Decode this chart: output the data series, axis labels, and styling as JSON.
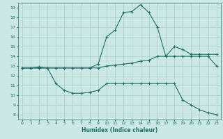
{
  "xlabel": "Humidex (Indice chaleur)",
  "bg_color": "#cce8e4",
  "grid_color": "#aad4cc",
  "line_color": "#1a6e64",
  "xlim": [
    -0.5,
    23.5
  ],
  "ylim": [
    7.5,
    19.5
  ],
  "yticks": [
    8,
    9,
    10,
    11,
    12,
    13,
    14,
    15,
    16,
    17,
    18,
    19
  ],
  "xticks": [
    0,
    1,
    2,
    3,
    4,
    5,
    6,
    7,
    8,
    9,
    10,
    11,
    12,
    13,
    14,
    15,
    16,
    17,
    18,
    19,
    20,
    21,
    22,
    23
  ],
  "line1_x": [
    0,
    1,
    2,
    3,
    4,
    5,
    6,
    7,
    8,
    9,
    10,
    11,
    12,
    13,
    14,
    15,
    16,
    17,
    18,
    19,
    20,
    21,
    22,
    23
  ],
  "line1_y": [
    12.8,
    12.8,
    12.9,
    12.8,
    11.2,
    10.5,
    10.2,
    10.2,
    10.3,
    10.5,
    11.2,
    11.2,
    11.2,
    11.2,
    11.2,
    11.2,
    11.2,
    11.2,
    11.2,
    9.5,
    9.0,
    8.5,
    8.2,
    8.0
  ],
  "line2_x": [
    0,
    1,
    2,
    3,
    4,
    5,
    6,
    7,
    8,
    9,
    10,
    11,
    12,
    13,
    14,
    15,
    16,
    17,
    18,
    19,
    20,
    21,
    22,
    23
  ],
  "line2_y": [
    12.8,
    12.8,
    12.8,
    12.8,
    12.8,
    12.8,
    12.8,
    12.8,
    12.8,
    12.8,
    13.0,
    13.1,
    13.2,
    13.3,
    13.5,
    13.6,
    14.0,
    14.0,
    14.0,
    14.0,
    14.0,
    14.0,
    14.0,
    13.0
  ],
  "line3_x": [
    0,
    1,
    2,
    3,
    4,
    5,
    6,
    7,
    8,
    9,
    10,
    11,
    12,
    13,
    14,
    15,
    16,
    17,
    18,
    19,
    20,
    21,
    22,
    23
  ],
  "line3_y": [
    12.8,
    12.8,
    12.8,
    12.8,
    12.8,
    12.8,
    12.8,
    12.8,
    12.8,
    13.2,
    16.0,
    16.7,
    18.5,
    18.6,
    19.3,
    18.5,
    17.0,
    14.0,
    15.0,
    14.7,
    14.2,
    14.2,
    14.2,
    14.2
  ]
}
